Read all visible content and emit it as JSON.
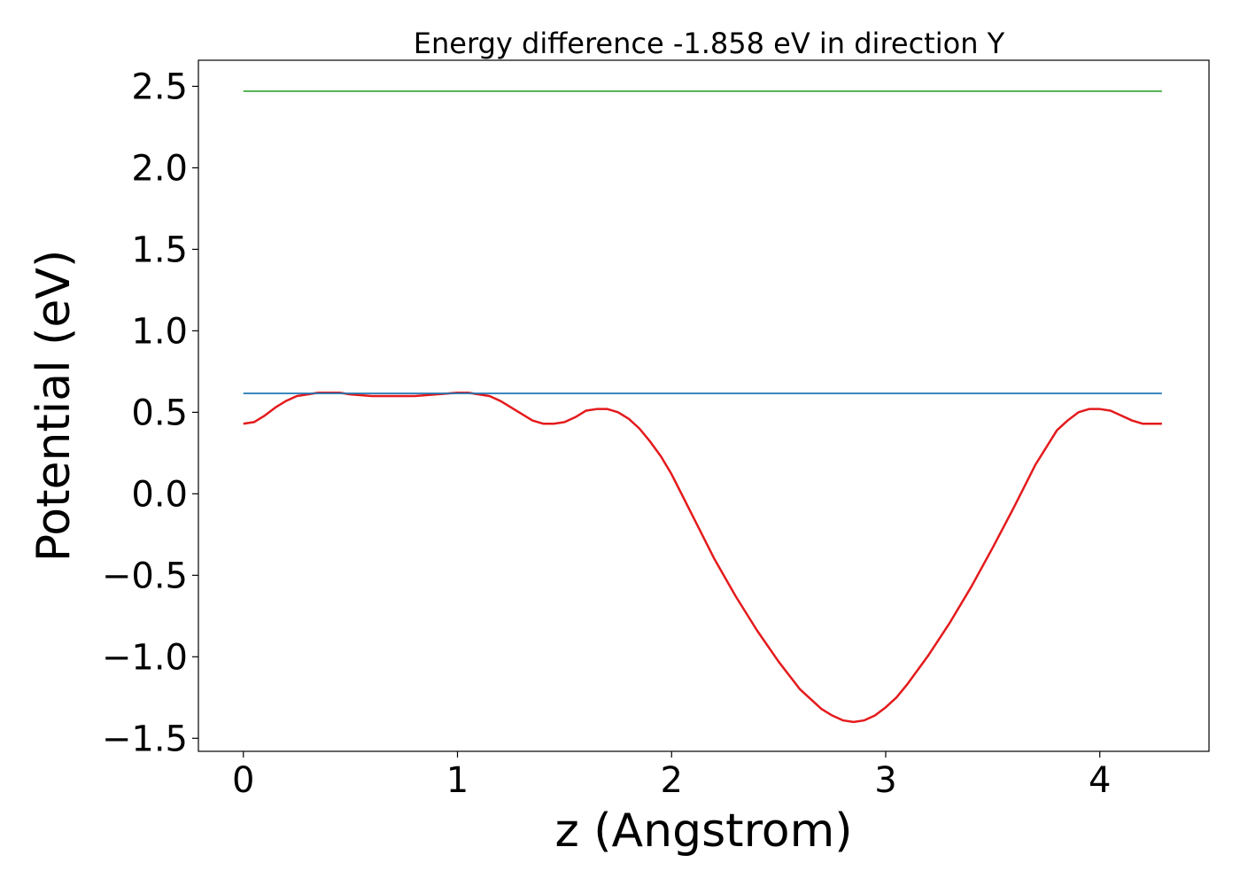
{
  "chart_data": {
    "type": "line",
    "title": "Energy difference -1.858 eV in direction Y",
    "xlabel": "z (Angstrom)",
    "ylabel": "Potential (eV)",
    "xlim": [
      -0.21,
      4.51
    ],
    "ylim": [
      -1.58,
      2.66
    ],
    "xticks": [
      0,
      1,
      2,
      3,
      4
    ],
    "xtick_labels": [
      "0",
      "1",
      "2",
      "3",
      "4"
    ],
    "yticks": [
      -1.5,
      -1.0,
      -0.5,
      0.0,
      0.5,
      1.0,
      1.5,
      2.0,
      2.5
    ],
    "ytick_labels": [
      "−1.5",
      "−1.0",
      "−0.5",
      "0.0",
      "0.5",
      "1.0",
      "1.5",
      "2.0",
      "2.5"
    ],
    "grid": false,
    "legend": "none",
    "series": [
      {
        "color": "#e41a1c",
        "x": [
          0,
          0.05,
          0.1,
          0.15,
          0.2,
          0.25,
          0.3,
          0.35,
          0.4,
          0.45,
          0.5,
          0.6,
          0.7,
          0.8,
          0.9,
          1.0,
          1.05,
          1.1,
          1.15,
          1.2,
          1.25,
          1.3,
          1.35,
          1.4,
          1.45,
          1.5,
          1.55,
          1.6,
          1.65,
          1.7,
          1.75,
          1.8,
          1.85,
          1.9,
          1.95,
          2.0,
          2.1,
          2.2,
          2.3,
          2.4,
          2.5,
          2.6,
          2.7,
          2.75,
          2.8,
          2.85,
          2.9,
          2.95,
          3.0,
          3.05,
          3.1,
          3.2,
          3.3,
          3.4,
          3.5,
          3.6,
          3.7,
          3.8,
          3.85,
          3.9,
          3.95,
          4.0,
          4.05,
          4.1,
          4.15,
          4.2,
          4.25,
          4.29
        ],
        "y": [
          0.43,
          0.44,
          0.48,
          0.53,
          0.57,
          0.6,
          0.61,
          0.62,
          0.62,
          0.62,
          0.61,
          0.6,
          0.6,
          0.6,
          0.61,
          0.62,
          0.62,
          0.61,
          0.6,
          0.57,
          0.53,
          0.49,
          0.45,
          0.43,
          0.43,
          0.44,
          0.47,
          0.51,
          0.52,
          0.52,
          0.5,
          0.46,
          0.4,
          0.32,
          0.23,
          0.12,
          -0.14,
          -0.4,
          -0.63,
          -0.84,
          -1.03,
          -1.2,
          -1.32,
          -1.36,
          -1.39,
          -1.4,
          -1.39,
          -1.36,
          -1.31,
          -1.25,
          -1.17,
          -0.99,
          -0.79,
          -0.57,
          -0.33,
          -0.08,
          0.18,
          0.39,
          0.45,
          0.5,
          0.52,
          0.52,
          0.51,
          0.48,
          0.45,
          0.43,
          0.43,
          0.43
        ]
      },
      {
        "color": "#1f77b4",
        "x": [
          0,
          4.29
        ],
        "y": [
          0.616,
          0.616
        ]
      },
      {
        "color": "#4daf4a",
        "x": [
          0,
          4.29
        ],
        "y": [
          2.47,
          2.47
        ]
      }
    ]
  }
}
